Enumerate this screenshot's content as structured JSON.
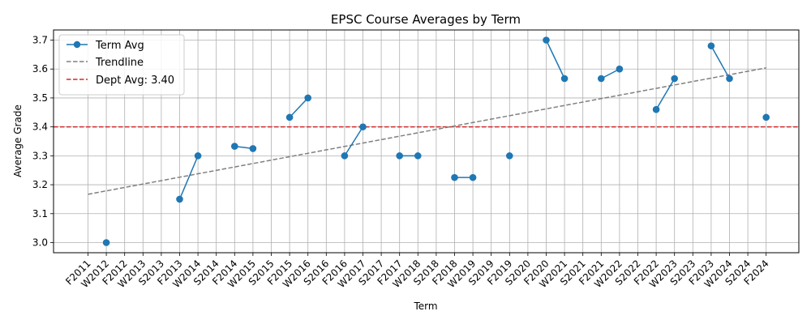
{
  "chart_data": {
    "type": "line",
    "title": "EPSC Course Averages by Term",
    "xlabel": "Term",
    "ylabel": "Average Grade",
    "ylim": [
      2.965,
      3.735
    ],
    "yticks": [
      "3.0",
      "3.1",
      "3.2",
      "3.3",
      "3.4",
      "3.5",
      "3.6",
      "3.7"
    ],
    "grid": true,
    "legend_position": "top-left",
    "categories": [
      "F2011",
      "W2012",
      "F2012",
      "W2013",
      "S2013",
      "F2013",
      "W2014",
      "S2014",
      "F2014",
      "W2015",
      "S2015",
      "F2015",
      "W2016",
      "S2016",
      "F2016",
      "W2017",
      "S2017",
      "F2017",
      "W2018",
      "S2018",
      "F2018",
      "W2019",
      "S2019",
      "F2019",
      "S2020",
      "F2020",
      "W2021",
      "S2021",
      "F2021",
      "W2022",
      "S2022",
      "F2022",
      "W2023",
      "S2023",
      "F2023",
      "W2024",
      "S2024",
      "F2024"
    ],
    "series": [
      {
        "name": "Term Avg",
        "color": "#1f77b4",
        "values": [
          null,
          3.0,
          null,
          null,
          null,
          3.15,
          3.3,
          null,
          3.333,
          3.325,
          null,
          3.433,
          3.5,
          null,
          3.3,
          3.4,
          null,
          3.3,
          3.3,
          null,
          3.225,
          3.225,
          null,
          3.3,
          null,
          3.7,
          3.567,
          null,
          3.567,
          3.6,
          null,
          3.46,
          3.567,
          null,
          3.68,
          3.567,
          null,
          3.433
        ]
      }
    ],
    "trendline": {
      "name": "Trendline",
      "color": "#808080",
      "start": 3.167,
      "end": 3.604
    },
    "reference_line": {
      "name": "Dept Avg: 3.40",
      "value": 3.4,
      "color": "#d62728"
    }
  }
}
